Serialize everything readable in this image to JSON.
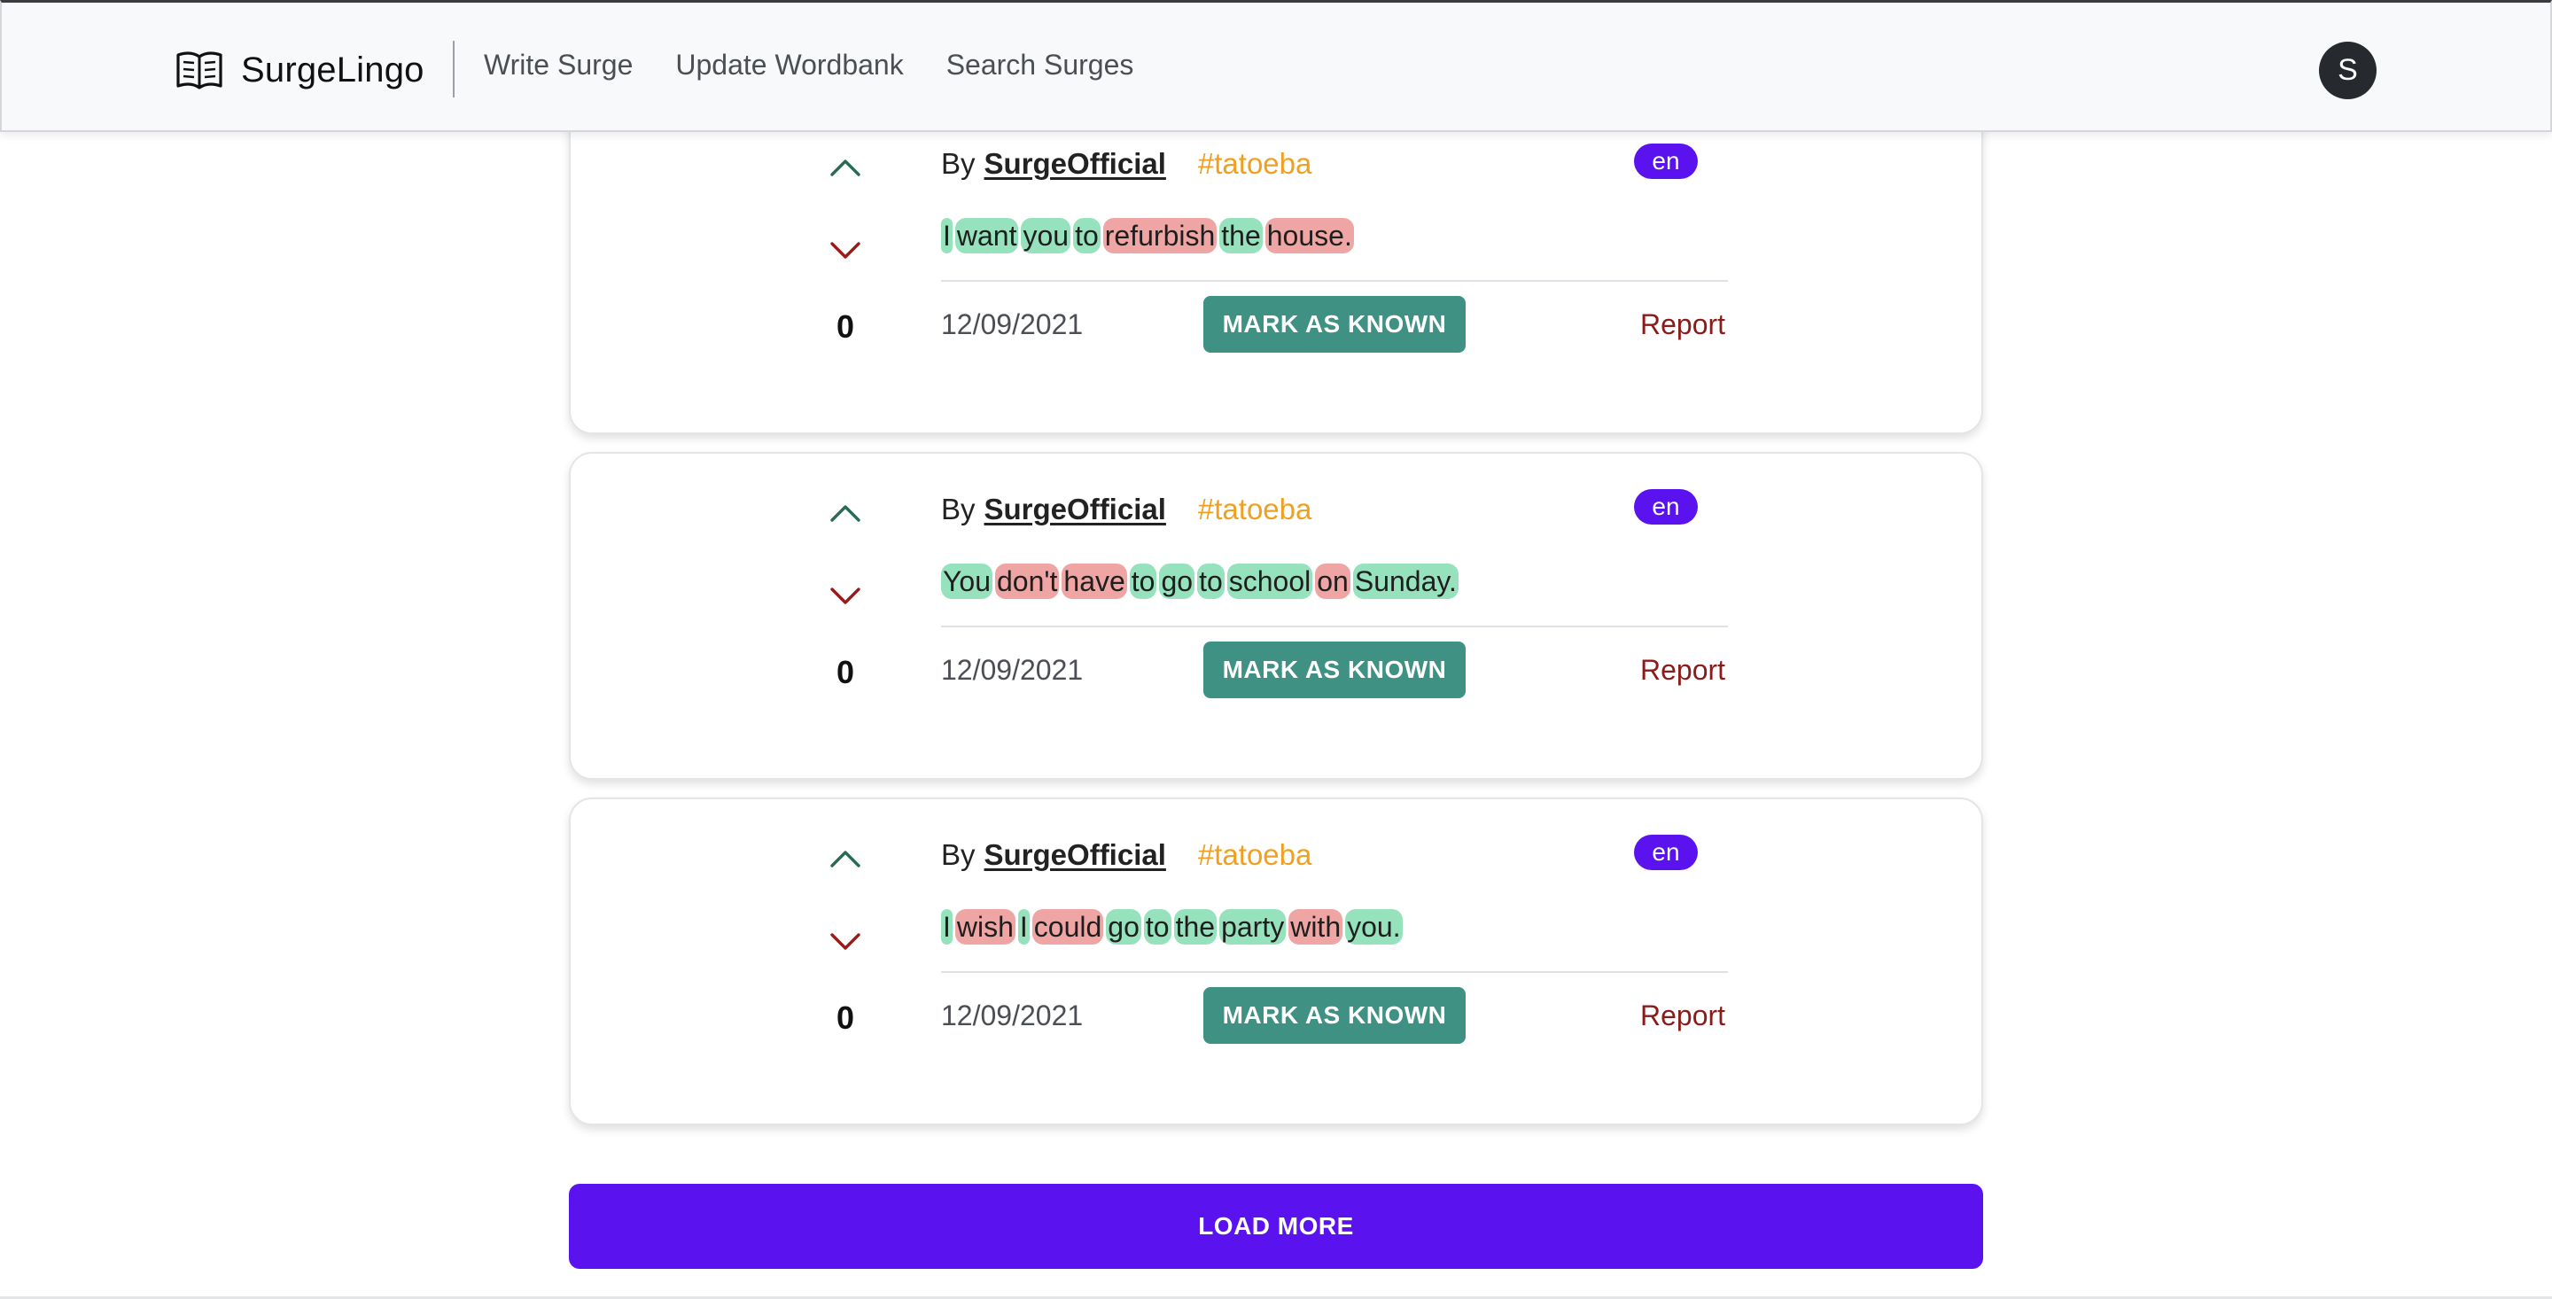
{
  "nav": {
    "brand": "SurgeLingo",
    "brand_icon": "open-book-icon",
    "links": [
      {
        "label": "Write Surge"
      },
      {
        "label": "Update Wordbank"
      },
      {
        "label": "Search Surges"
      }
    ],
    "avatar_initial": "S"
  },
  "colors": {
    "accent": "#5a12ef",
    "known_word": "#95e2bd",
    "unknown_word": "#efa5a3",
    "mark_button": "#3f9183",
    "report": "#8b1a1a",
    "tag": "#f0a020"
  },
  "surges": [
    {
      "by_label": "By",
      "author": "SurgeOfficial",
      "tag": "#tatoeba",
      "language": "en",
      "votes": "0",
      "date": "12/09/2021",
      "mark_label": "MARK AS KNOWN",
      "report_label": "Report",
      "words": [
        {
          "text": "I",
          "status": "known"
        },
        {
          "text": "want",
          "status": "known"
        },
        {
          "text": "you",
          "status": "known"
        },
        {
          "text": "to",
          "status": "known"
        },
        {
          "text": "refurbish",
          "status": "unknown"
        },
        {
          "text": "the",
          "status": "known"
        },
        {
          "text": "house.",
          "status": "unknown"
        }
      ]
    },
    {
      "by_label": "By",
      "author": "SurgeOfficial",
      "tag": "#tatoeba",
      "language": "en",
      "votes": "0",
      "date": "12/09/2021",
      "mark_label": "MARK AS KNOWN",
      "report_label": "Report",
      "words": [
        {
          "text": "You",
          "status": "known"
        },
        {
          "text": "don't",
          "status": "unknown"
        },
        {
          "text": "have",
          "status": "unknown"
        },
        {
          "text": "to",
          "status": "known"
        },
        {
          "text": "go",
          "status": "known"
        },
        {
          "text": "to",
          "status": "known"
        },
        {
          "text": "school",
          "status": "known"
        },
        {
          "text": "on",
          "status": "unknown"
        },
        {
          "text": "Sunday.",
          "status": "known"
        }
      ]
    },
    {
      "by_label": "By",
      "author": "SurgeOfficial",
      "tag": "#tatoeba",
      "language": "en",
      "votes": "0",
      "date": "12/09/2021",
      "mark_label": "MARK AS KNOWN",
      "report_label": "Report",
      "words": [
        {
          "text": "I",
          "status": "known"
        },
        {
          "text": "wish",
          "status": "unknown"
        },
        {
          "text": "I",
          "status": "known"
        },
        {
          "text": "could",
          "status": "unknown"
        },
        {
          "text": "go",
          "status": "known"
        },
        {
          "text": "to",
          "status": "known"
        },
        {
          "text": "the",
          "status": "known"
        },
        {
          "text": "party",
          "status": "known"
        },
        {
          "text": "with",
          "status": "unknown"
        },
        {
          "text": "you.",
          "status": "known"
        }
      ]
    }
  ],
  "load_more_label": "LOAD MORE"
}
